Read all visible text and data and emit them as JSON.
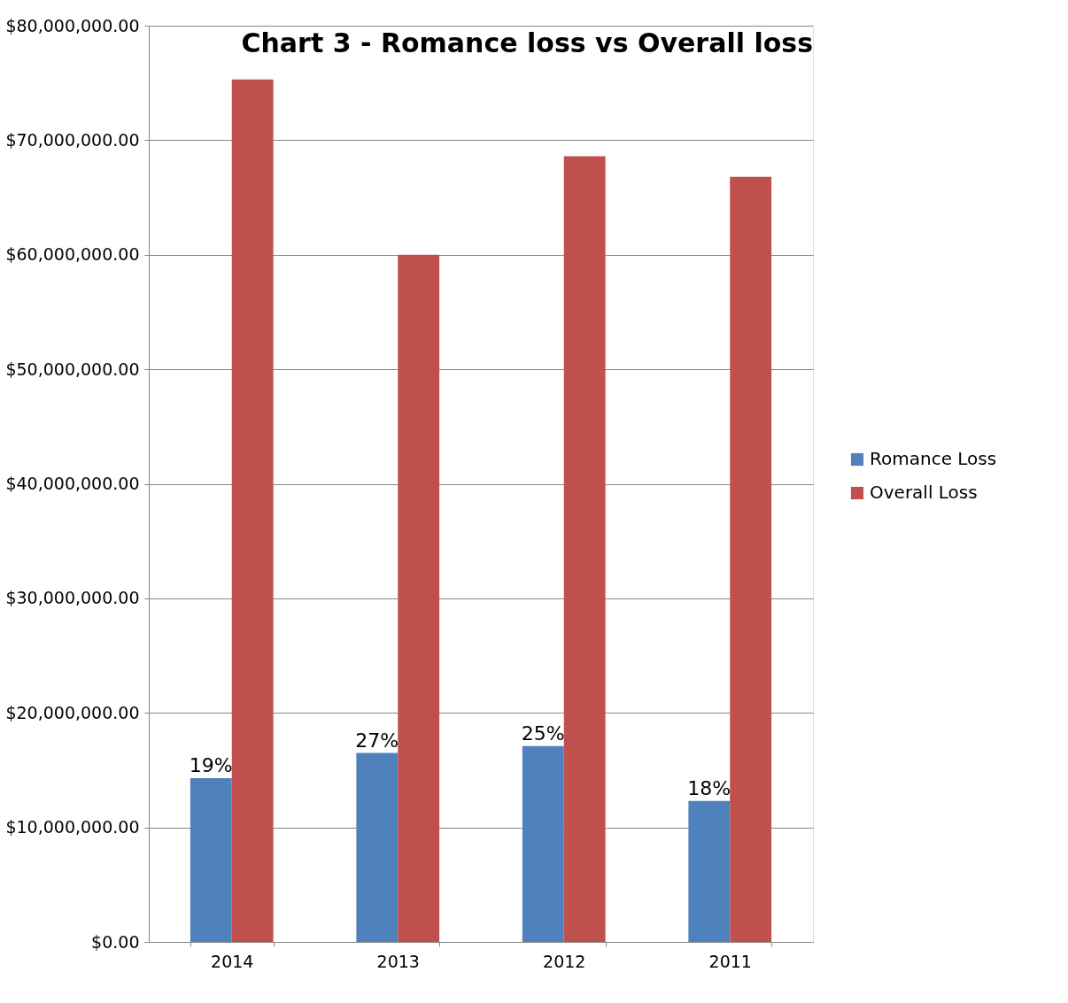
{
  "chart_data": {
    "type": "bar",
    "title": "Chart 3 - Romance loss vs Overall loss",
    "categories": [
      "2014",
      "2013",
      "2012",
      "2011"
    ],
    "series": [
      {
        "name": "Romance Loss",
        "color": "#4f81bd",
        "values": [
          14300000,
          16500000,
          17100000,
          12300000
        ]
      },
      {
        "name": "Overall Loss",
        "color": "#c0504d",
        "values": [
          75300000,
          60000000,
          68600000,
          66800000
        ]
      }
    ],
    "ylim": [
      0,
      80000000
    ],
    "yticks": [
      {
        "value": 0,
        "label": "$0.00"
      },
      {
        "value": 10000000,
        "label": "$10,000,000.00"
      },
      {
        "value": 20000000,
        "label": "$20,000,000.00"
      },
      {
        "value": 30000000,
        "label": "$30,000,000.00"
      },
      {
        "value": 40000000,
        "label": "$40,000,000.00"
      },
      {
        "value": 50000000,
        "label": "$50,000,000.00"
      },
      {
        "value": 60000000,
        "label": "$60,000,000.00"
      },
      {
        "value": 70000000,
        "label": "$70,000,000.00"
      },
      {
        "value": 80000000,
        "label": "$80,000,000.00"
      }
    ],
    "annotations": [
      {
        "text": "19%",
        "x": "2014",
        "y": 14300000
      },
      {
        "text": "27%",
        "x": "2013",
        "y": 16500000
      },
      {
        "text": "25%",
        "x": "2012",
        "y": 17100000
      },
      {
        "text": "18%",
        "x": "2011",
        "y": 12300000
      }
    ],
    "grid": "y",
    "legend": "right"
  }
}
